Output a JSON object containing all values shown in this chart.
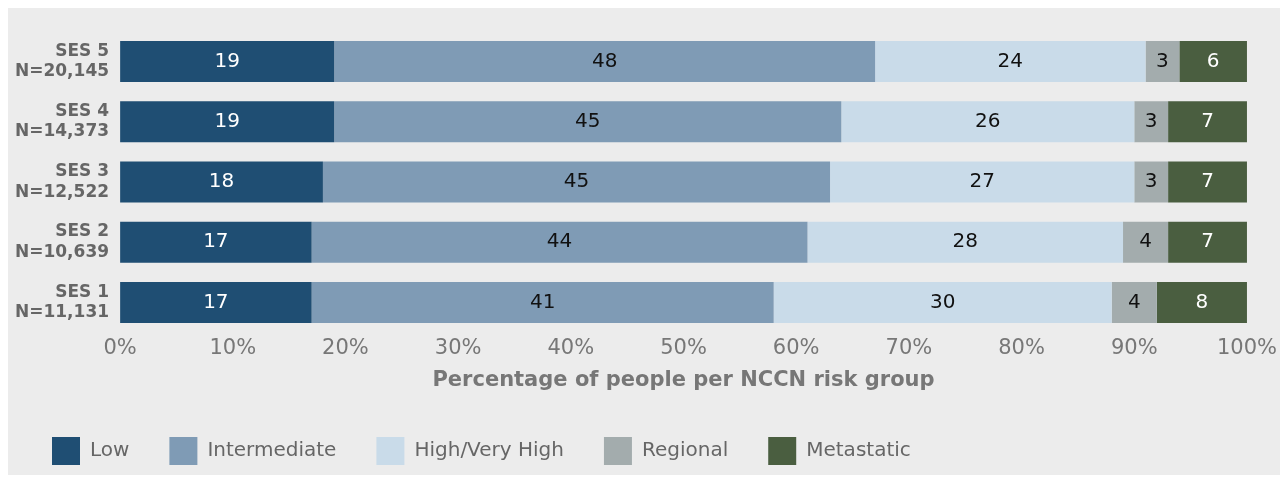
{
  "chart_data": {
    "type": "bar",
    "orientation": "horizontal",
    "stacked": true,
    "xlabel": "Percentage of people per NCCN risk group",
    "categories": [
      "SES 5\nN=20,145",
      "SES 4\nN=14,373",
      "SES 3\nN=12,522",
      "SES 2\nN=10,639",
      "SES 1\nN=11,131"
    ],
    "series": [
      {
        "name": "Low",
        "color": "#1f4e73",
        "values": [
          19,
          19,
          18,
          17,
          17
        ]
      },
      {
        "name": "Intermediate",
        "color": "#7f9bb5",
        "values": [
          48,
          45,
          45,
          44,
          41
        ]
      },
      {
        "name": "High/Very High",
        "color": "#c9dbe9",
        "values": [
          24,
          26,
          27,
          28,
          30
        ]
      },
      {
        "name": "Regional",
        "color": "#a3acad",
        "values": [
          3,
          3,
          3,
          4,
          4
        ]
      },
      {
        "name": "Metastatic",
        "color": "#4a5e40",
        "values": [
          6,
          7,
          7,
          7,
          8
        ]
      }
    ],
    "xlim": [
      0,
      100
    ],
    "xticks": [
      {
        "value": 0,
        "label": "0%"
      },
      {
        "value": 10,
        "label": "10%"
      },
      {
        "value": 20,
        "label": "20%"
      },
      {
        "value": 30,
        "label": "30%"
      },
      {
        "value": 40,
        "label": "40%"
      },
      {
        "value": 50,
        "label": "50%"
      },
      {
        "value": 60,
        "label": "60%"
      },
      {
        "value": 70,
        "label": "70%"
      },
      {
        "value": 80,
        "label": "80%"
      },
      {
        "value": 90,
        "label": "90%"
      },
      {
        "value": 100,
        "label": "100%"
      }
    ],
    "data_labels": true,
    "grid": false,
    "legend": "bottom left"
  }
}
